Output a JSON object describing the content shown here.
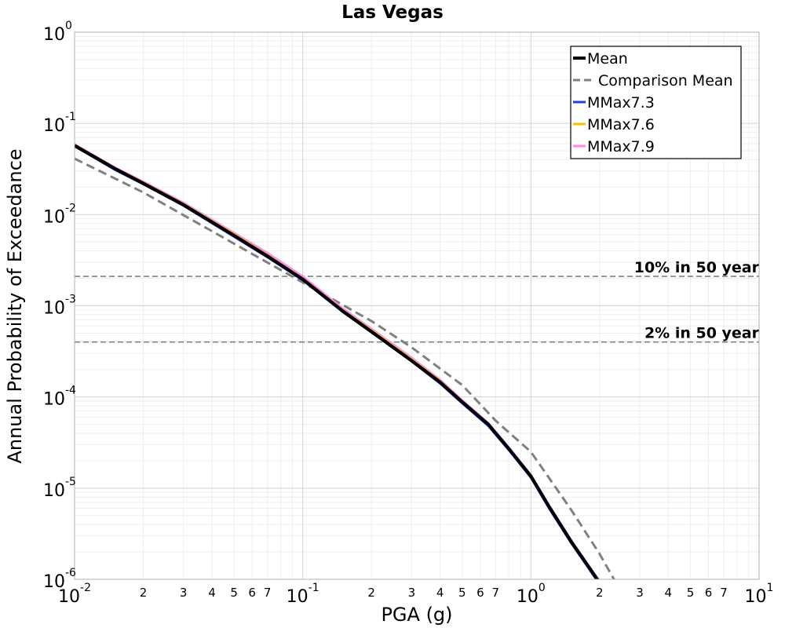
{
  "chart_data": {
    "type": "line",
    "title": "Las Vegas",
    "xlabel": "PGA (g)",
    "ylabel": "Annual Probability of Exceedance",
    "xscale": "log",
    "yscale": "log",
    "xlim": [
      0.01,
      10
    ],
    "ylim": [
      1e-06,
      1
    ],
    "grid": true,
    "legend_position": "top-right",
    "x_major_ticks": [
      {
        "value": 0.01,
        "base": "10",
        "exp": "-2"
      },
      {
        "value": 0.1,
        "base": "10",
        "exp": "-1"
      },
      {
        "value": 1,
        "base": "10",
        "exp": "0"
      },
      {
        "value": 10,
        "base": "10",
        "exp": "1"
      }
    ],
    "x_minor_tick_labels": [
      {
        "value": 0.02,
        "label": "2"
      },
      {
        "value": 0.03,
        "label": "3"
      },
      {
        "value": 0.04,
        "label": "4"
      },
      {
        "value": 0.05,
        "label": "5"
      },
      {
        "value": 0.06,
        "label": "6"
      },
      {
        "value": 0.07,
        "label": "7"
      },
      {
        "value": 0.2,
        "label": "2"
      },
      {
        "value": 0.3,
        "label": "3"
      },
      {
        "value": 0.4,
        "label": "4"
      },
      {
        "value": 0.5,
        "label": "5"
      },
      {
        "value": 0.6,
        "label": "6"
      },
      {
        "value": 0.7,
        "label": "7"
      },
      {
        "value": 2,
        "label": "2"
      },
      {
        "value": 3,
        "label": "3"
      },
      {
        "value": 4,
        "label": "4"
      },
      {
        "value": 5,
        "label": "5"
      },
      {
        "value": 6,
        "label": "6"
      },
      {
        "value": 7,
        "label": "7"
      }
    ],
    "y_major_ticks": [
      {
        "value": 1,
        "base": "10",
        "exp": "0"
      },
      {
        "value": 0.1,
        "base": "10",
        "exp": "-1"
      },
      {
        "value": 0.01,
        "base": "10",
        "exp": "-2"
      },
      {
        "value": 0.001,
        "base": "10",
        "exp": "-3"
      },
      {
        "value": 0.0001,
        "base": "10",
        "exp": "-4"
      },
      {
        "value": 1e-05,
        "base": "10",
        "exp": "-5"
      },
      {
        "value": 1e-06,
        "base": "10",
        "exp": "-6"
      }
    ],
    "reference_lines": [
      {
        "label": "10% in 50 year",
        "y": 0.0021,
        "color": "#808080",
        "style": "dashed"
      },
      {
        "label": "2% in 50 year",
        "y": 0.0004,
        "color": "#808080",
        "style": "dashed"
      }
    ],
    "series": [
      {
        "name": "Comparison Mean",
        "color": "#808080",
        "style": "dashed",
        "x": [
          0.01,
          0.02,
          0.05,
          0.1,
          0.2,
          0.3,
          0.5,
          0.7,
          1.0,
          1.5,
          2.0,
          2.4
        ],
        "y": [
          0.041,
          0.0175,
          0.0048,
          0.0018,
          0.00068,
          0.00035,
          0.000135,
          5.5e-05,
          2.5e-05,
          5.8e-06,
          1.9e-06,
          8.5e-07
        ]
      },
      {
        "name": "MMax7.9",
        "color": "#ff88e8",
        "style": "solid",
        "x": [
          0.01,
          0.015,
          0.02,
          0.03,
          0.05,
          0.07,
          0.1,
          0.15,
          0.2,
          0.3,
          0.4,
          0.5,
          0.65,
          0.8,
          1.0,
          1.2,
          1.5,
          2.0
        ],
        "y": [
          0.059,
          0.033,
          0.023,
          0.0135,
          0.0063,
          0.0038,
          0.0021,
          0.00093,
          0.00056,
          0.00027,
          0.000155,
          9.2e-05,
          5.2e-05,
          2.8e-05,
          1.4e-05,
          6.5e-06,
          2.7e-06,
          9.5e-07
        ]
      },
      {
        "name": "MMax7.6",
        "color": "#f5c400",
        "style": "solid",
        "x": [
          0.01,
          0.015,
          0.02,
          0.03,
          0.05,
          0.07,
          0.1,
          0.15,
          0.2,
          0.3,
          0.4,
          0.5,
          0.65,
          0.8,
          1.0,
          1.2,
          1.5,
          2.0
        ],
        "y": [
          0.058,
          0.0325,
          0.0225,
          0.0131,
          0.0061,
          0.0036,
          0.00198,
          0.00089,
          0.00054,
          0.00026,
          0.00015,
          8.9e-05,
          5e-05,
          2.7e-05,
          1.35e-05,
          6.3e-06,
          2.6e-06,
          9.2e-07
        ]
      },
      {
        "name": "MMax7.3",
        "color": "#1a3cff",
        "style": "solid",
        "x": [
          0.01,
          0.015,
          0.02,
          0.03,
          0.05,
          0.07,
          0.1,
          0.15,
          0.2,
          0.3,
          0.4,
          0.5,
          0.65,
          0.8,
          1.0,
          1.2,
          1.5,
          2.0
        ],
        "y": [
          0.056,
          0.031,
          0.0215,
          0.0125,
          0.0057,
          0.0034,
          0.0019,
          0.00085,
          0.00051,
          0.000245,
          0.00014,
          8.5e-05,
          4.8e-05,
          2.6e-05,
          1.3e-05,
          6e-06,
          2.5e-06,
          8.8e-07
        ]
      },
      {
        "name": "Mean",
        "color": "#000000",
        "style": "solid",
        "x": [
          0.01,
          0.015,
          0.02,
          0.03,
          0.05,
          0.07,
          0.1,
          0.15,
          0.2,
          0.3,
          0.4,
          0.5,
          0.65,
          0.8,
          1.0,
          1.2,
          1.5,
          2.0
        ],
        "y": [
          0.057,
          0.032,
          0.022,
          0.0128,
          0.0059,
          0.0035,
          0.00195,
          0.00087,
          0.00052,
          0.00025,
          0.000145,
          8.8e-05,
          5e-05,
          2.7e-05,
          1.35e-05,
          6.3e-06,
          2.6e-06,
          9.2e-07
        ]
      }
    ],
    "legend_order": [
      "Mean",
      "Comparison Mean",
      "MMax7.3",
      "MMax7.6",
      "MMax7.9"
    ]
  }
}
